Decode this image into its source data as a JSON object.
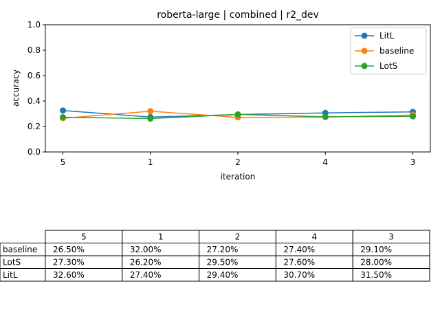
{
  "chart_data": {
    "type": "line",
    "title": "roberta-large | combined | r2_dev",
    "xlabel": "iteration",
    "ylabel": "accuracy",
    "categories": [
      "5",
      "1",
      "2",
      "4",
      "3"
    ],
    "ylim": [
      0.0,
      1.0
    ],
    "yticks": [
      "0.0",
      "0.2",
      "0.4",
      "0.6",
      "0.8",
      "1.0"
    ],
    "grid": false,
    "legend_position": "top-right",
    "series": [
      {
        "name": "LitL",
        "color": "#1f77b4",
        "values": [
          0.326,
          0.274,
          0.294,
          0.307,
          0.315
        ]
      },
      {
        "name": "baseline",
        "color": "#ff7f0e",
        "values": [
          0.265,
          0.32,
          0.272,
          0.274,
          0.291
        ]
      },
      {
        "name": "LotS",
        "color": "#2ca02c",
        "values": [
          0.273,
          0.262,
          0.295,
          0.276,
          0.28
        ]
      }
    ]
  },
  "table": {
    "columns": [
      "5",
      "1",
      "2",
      "4",
      "3"
    ],
    "rows": [
      {
        "label": "baseline",
        "cells": [
          "26.50%",
          "32.00%",
          "27.20%",
          "27.40%",
          "29.10%"
        ]
      },
      {
        "label": "LotS",
        "cells": [
          "27.30%",
          "26.20%",
          "29.50%",
          "27.60%",
          "28.00%"
        ]
      },
      {
        "label": "LitL",
        "cells": [
          "32.60%",
          "27.40%",
          "29.40%",
          "30.70%",
          "31.50%"
        ]
      }
    ]
  }
}
